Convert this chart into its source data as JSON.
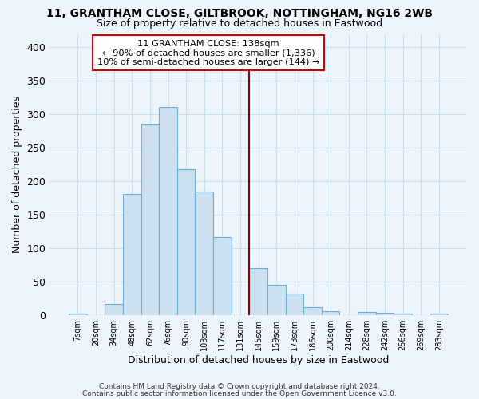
{
  "title": "11, GRANTHAM CLOSE, GILTBROOK, NOTTINGHAM, NG16 2WB",
  "subtitle": "Size of property relative to detached houses in Eastwood",
  "xlabel": "Distribution of detached houses by size in Eastwood",
  "ylabel": "Number of detached properties",
  "bar_color": "#cce0f0",
  "bar_edge_color": "#6aafd6",
  "grid_color": "#c8dff0",
  "background_color": "#eef4fb",
  "categories": [
    "7sqm",
    "20sqm",
    "34sqm",
    "48sqm",
    "62sqm",
    "76sqm",
    "90sqm",
    "103sqm",
    "117sqm",
    "131sqm",
    "145sqm",
    "159sqm",
    "173sqm",
    "186sqm",
    "200sqm",
    "214sqm",
    "228sqm",
    "242sqm",
    "256sqm",
    "269sqm",
    "283sqm"
  ],
  "values": [
    2,
    0,
    16,
    181,
    285,
    311,
    218,
    185,
    117,
    0,
    70,
    45,
    32,
    11,
    6,
    0,
    5,
    3,
    2,
    0,
    2
  ],
  "ylim": [
    0,
    420
  ],
  "yticks": [
    0,
    50,
    100,
    150,
    200,
    250,
    300,
    350,
    400
  ],
  "red_line_x": 10.0,
  "annotation_title": "11 GRANTHAM CLOSE: 138sqm",
  "annotation_line1": "← 90% of detached houses are smaller (1,336)",
  "annotation_line2": "10% of semi-detached houses are larger (144) →",
  "footer1": "Contains HM Land Registry data © Crown copyright and database right 2024.",
  "footer2": "Contains public sector information licensed under the Open Government Licence v3.0."
}
